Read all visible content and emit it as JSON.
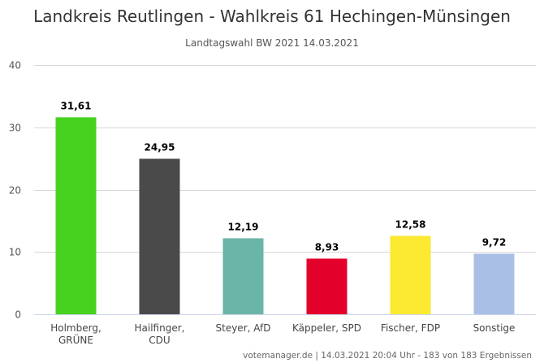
{
  "chart_data": {
    "type": "bar",
    "title": "Landkreis Reutlingen - Wahlkreis 61 Hechingen-Münsingen",
    "subtitle": "Landtagswahl BW 2021 14.03.2021",
    "categories": [
      [
        "Holmberg,",
        "GRÜNE"
      ],
      [
        "Hailfinger,",
        "CDU"
      ],
      [
        "Steyer, AfD"
      ],
      [
        "Käppeler, SPD"
      ],
      [
        "Fischer, FDP"
      ],
      [
        "Sonstige"
      ]
    ],
    "values": [
      31.61,
      24.95,
      12.19,
      8.93,
      12.58,
      9.72
    ],
    "value_labels": [
      "31,61",
      "24,95",
      "12,19",
      "8,93",
      "12,58",
      "9,72"
    ],
    "colors": [
      "#46d21e",
      "#4a4a4a",
      "#6bb5a8",
      "#e3002b",
      "#fbe932",
      "#a9bfe6"
    ],
    "ylim": [
      0,
      40
    ],
    "yticks": [
      "0",
      "10",
      "20",
      "30",
      "40"
    ],
    "grid": true,
    "legend": "none"
  },
  "credits": "votemanager.de | 14.03.2021 20:04 Uhr - 183 von 183 Ergebnissen"
}
